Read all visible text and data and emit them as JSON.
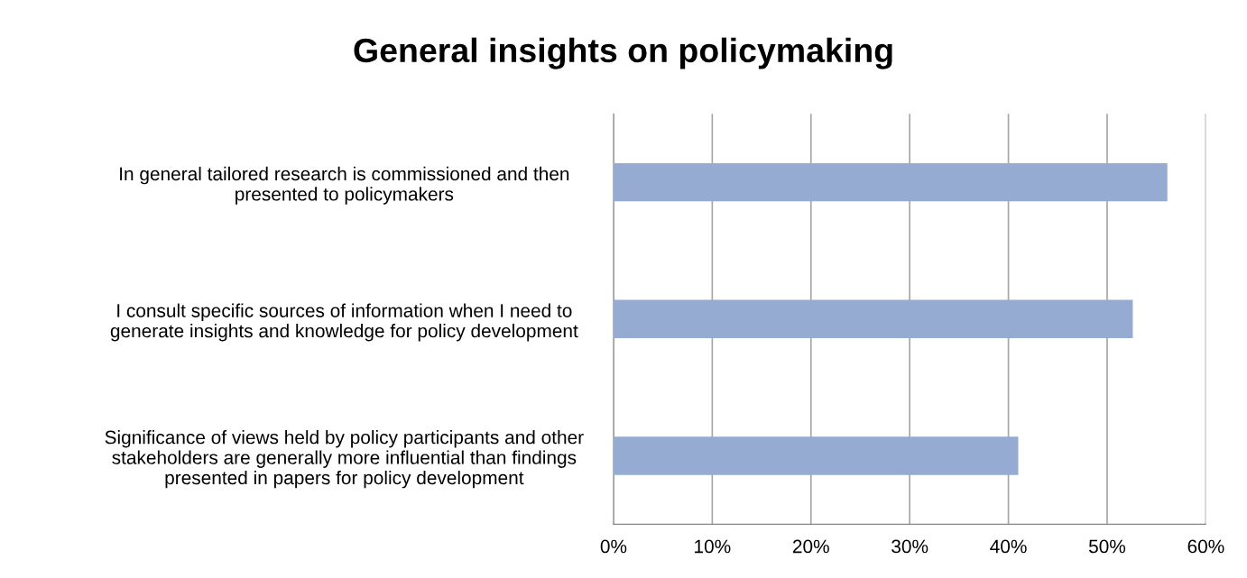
{
  "chart_data": {
    "type": "bar",
    "orientation": "horizontal",
    "title": "General insights on policymaking",
    "categories": [
      "In general tailored research is commissioned and then\npresented to policymakers",
      "I consult specific sources of information when I need to\ngenerate insights and knowledge for policy development",
      "Significance of views held by policy participants and other\nstakeholders are generally more influential than findings\npresented in papers for policy development"
    ],
    "values": [
      56.1,
      52.6,
      41.0
    ],
    "color": "#95abd2",
    "xlim": [
      0,
      60
    ],
    "xticks": [
      {
        "value": 0,
        "label": "0%"
      },
      {
        "value": 10,
        "label": "10%"
      },
      {
        "value": 20,
        "label": "20%"
      },
      {
        "value": 30,
        "label": "30%"
      },
      {
        "value": 40,
        "label": "40%"
      },
      {
        "value": 50,
        "label": "50%"
      },
      {
        "value": 60,
        "label": "60%"
      }
    ],
    "grid": "x",
    "legend": false
  }
}
